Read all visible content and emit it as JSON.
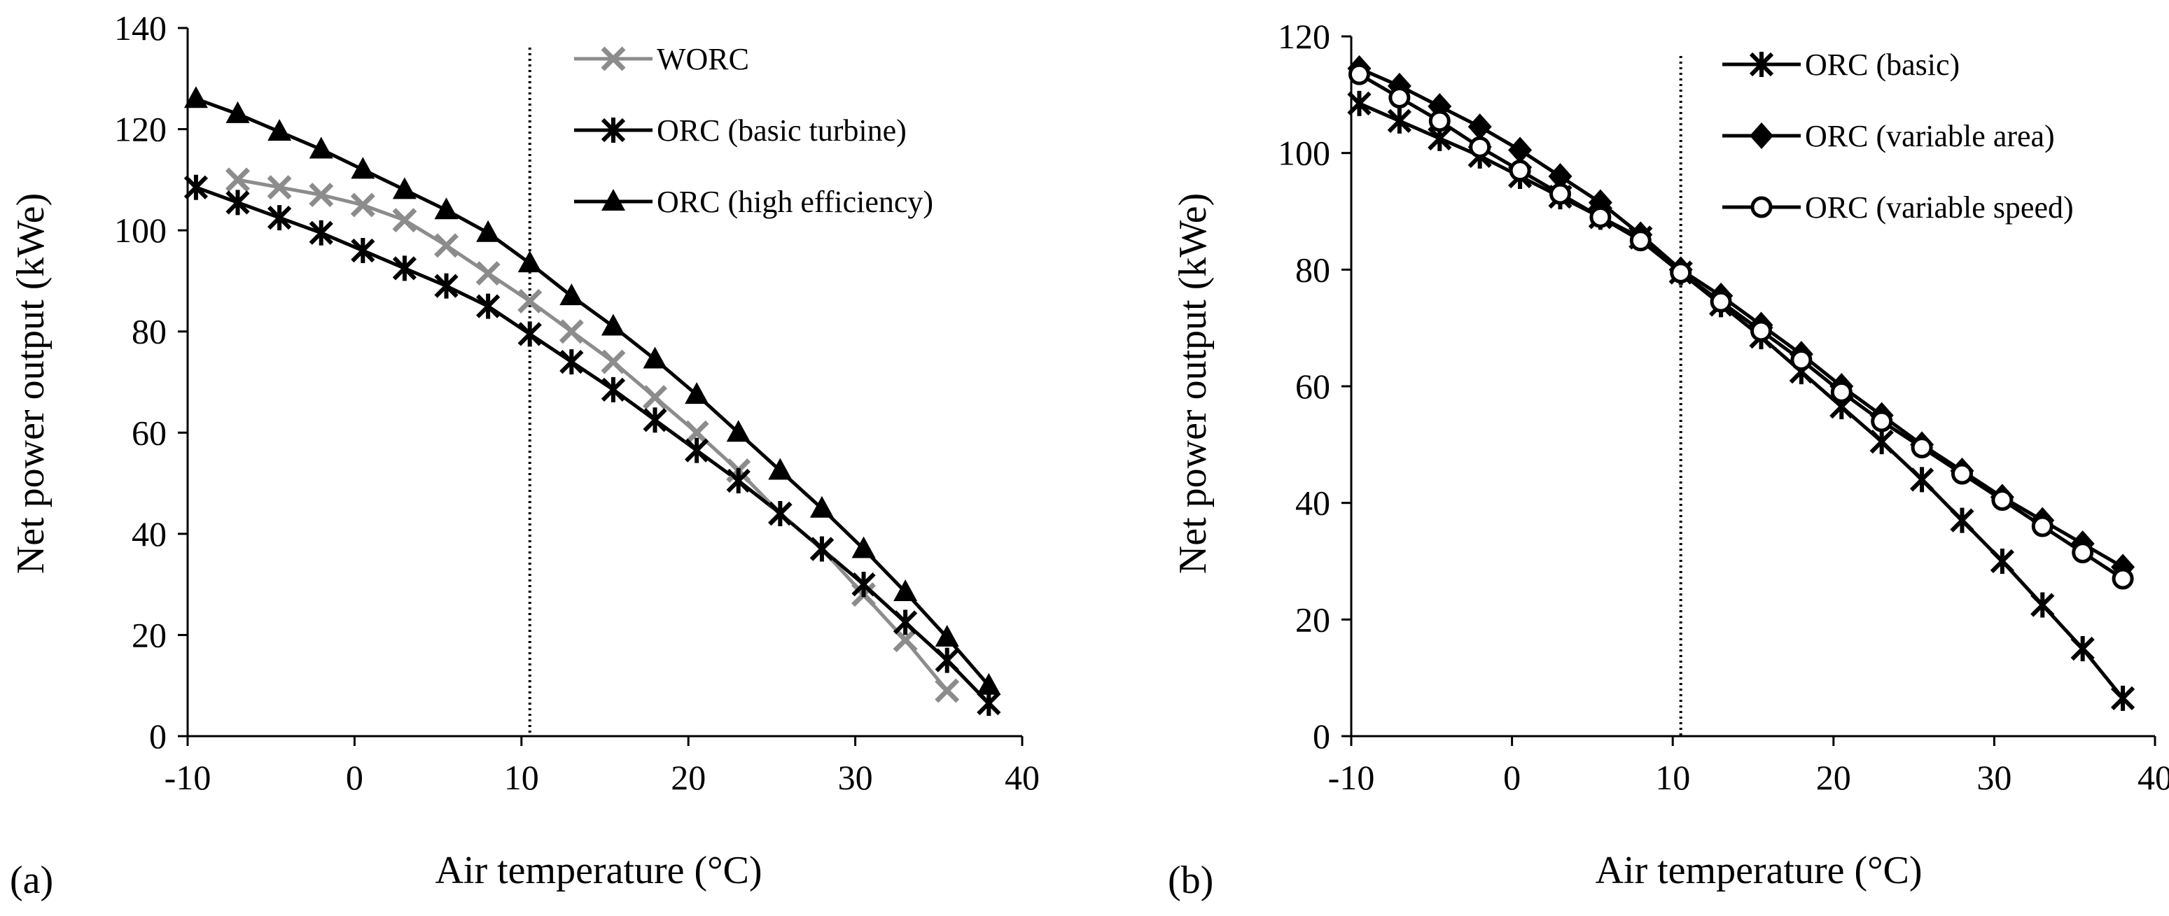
{
  "figure": {
    "panel_labels": [
      "(a)",
      "(b)"
    ]
  },
  "colors": {
    "black": "#000000",
    "gray": "#8c8c8c"
  },
  "chart_data": [
    {
      "type": "line",
      "panel": "(a)",
      "xlabel": "Air temperature (°C)",
      "ylabel": "Net power output (kWe)",
      "xlim": [
        -10,
        40
      ],
      "ylim": [
        0,
        140
      ],
      "xticks": [
        -10,
        0,
        10,
        20,
        30,
        40
      ],
      "yticks": [
        0,
        20,
        40,
        60,
        80,
        100,
        120,
        140
      ],
      "vline_x": 10.5,
      "legend_position": "top-right",
      "series": [
        {
          "name": "WORC",
          "marker": "x",
          "color": "#8c8c8c",
          "x": [
            -7,
            -4.5,
            -2,
            0.5,
            3,
            5.5,
            8,
            10.5,
            13,
            15.5,
            18,
            20.5,
            23,
            25.5,
            28,
            30.5,
            33,
            35.5
          ],
          "y": [
            110,
            108.5,
            107,
            105,
            102,
            97,
            91.5,
            86,
            80,
            74,
            67,
            60,
            52.5,
            44,
            37,
            28,
            19,
            9
          ]
        },
        {
          "name": "ORC (basic turbine)",
          "marker": "asterisk",
          "color": "#000000",
          "x": [
            -9.5,
            -7,
            -4.5,
            -2,
            0.5,
            3,
            5.5,
            8,
            10.5,
            13,
            15.5,
            18,
            20.5,
            23,
            25.5,
            28,
            30.5,
            33,
            35.5,
            38
          ],
          "y": [
            108.5,
            105.5,
            102.5,
            99.5,
            96,
            92.5,
            89,
            85,
            79.5,
            74,
            68.5,
            62.5,
            56.5,
            50.5,
            44,
            37,
            30,
            22.5,
            15,
            6.5
          ]
        },
        {
          "name": "ORC (high efficiency)",
          "marker": "triangle",
          "color": "#000000",
          "x": [
            -9.5,
            -7,
            -4.5,
            -2,
            0.5,
            3,
            5.5,
            8,
            10.5,
            13,
            15.5,
            18,
            20.5,
            23,
            25.5,
            28,
            30.5,
            33,
            35.5,
            38
          ],
          "y": [
            126,
            123,
            119.5,
            116,
            112,
            108,
            104,
            99.5,
            93.5,
            87,
            81,
            74.5,
            67.5,
            60,
            52.5,
            45,
            37,
            28.5,
            19.5,
            10
          ]
        }
      ]
    },
    {
      "type": "line",
      "panel": "(b)",
      "xlabel": "Air temperature (°C)",
      "ylabel": "Net power output (kWe)",
      "xlim": [
        -10,
        40
      ],
      "ylim": [
        0,
        120
      ],
      "xticks": [
        -10,
        0,
        10,
        20,
        30,
        40
      ],
      "yticks": [
        0,
        20,
        40,
        60,
        80,
        100,
        120
      ],
      "vline_x": 10.5,
      "legend_position": "top-right",
      "series": [
        {
          "name": "ORC (basic)",
          "marker": "asterisk",
          "color": "#000000",
          "x": [
            -9.5,
            -7,
            -4.5,
            -2,
            0.5,
            3,
            5.5,
            8,
            10.5,
            13,
            15.5,
            18,
            20.5,
            23,
            25.5,
            28,
            30.5,
            33,
            35.5,
            38
          ],
          "y": [
            108.5,
            105.5,
            102.5,
            99.5,
            96,
            92.5,
            89,
            85.5,
            79.5,
            74,
            68.5,
            62.5,
            56.5,
            50.5,
            44,
            37,
            30,
            22.5,
            15,
            6.5
          ]
        },
        {
          "name": "ORC (variable area)",
          "marker": "diamond",
          "color": "#000000",
          "x": [
            -9.5,
            -7,
            -4.5,
            -2,
            0.5,
            3,
            5.5,
            8,
            10.5,
            13,
            15.5,
            18,
            20.5,
            23,
            25.5,
            28,
            30.5,
            33,
            35.5,
            38
          ],
          "y": [
            114.5,
            111.5,
            108,
            104.5,
            100.5,
            96,
            91.5,
            86,
            80,
            75.5,
            70.5,
            65.5,
            60,
            55,
            50,
            45.5,
            41,
            37,
            33,
            29
          ]
        },
        {
          "name": "ORC (variable speed)",
          "marker": "circle",
          "color": "#000000",
          "x": [
            -9.5,
            -7,
            -4.5,
            -2,
            0.5,
            3,
            5.5,
            8,
            10.5,
            13,
            15.5,
            18,
            20.5,
            23,
            25.5,
            28,
            30.5,
            33,
            35.5,
            38
          ],
          "y": [
            113.5,
            109.5,
            105.5,
            101,
            97,
            93,
            89,
            85,
            79.5,
            74.5,
            69.5,
            64.5,
            59,
            54,
            49.5,
            45,
            40.5,
            36,
            31.5,
            27
          ]
        }
      ]
    }
  ]
}
